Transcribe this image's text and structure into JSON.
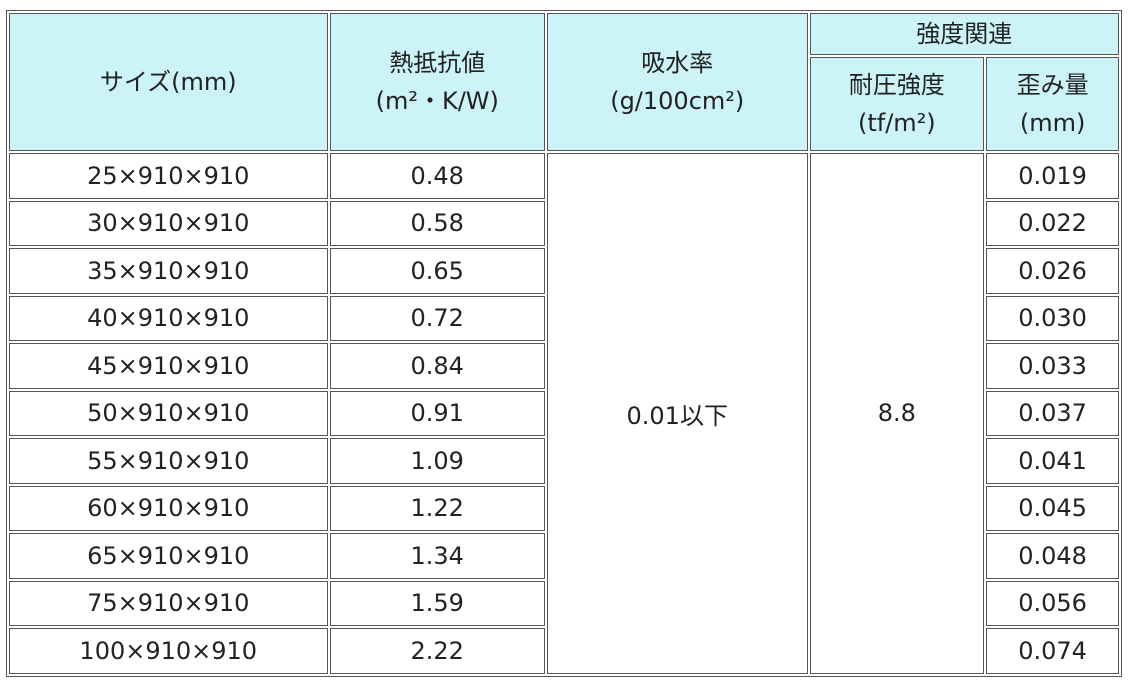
{
  "header": {
    "size": "サイズ(mm)",
    "thermal_resistance": [
      "熱抵抗値",
      "(m²・K/W)"
    ],
    "water_absorption": [
      "吸水率",
      "(g/100cm²)"
    ],
    "strength_group": "強度関連",
    "compressive_strength": [
      "耐圧強度",
      "(tf/m²)"
    ],
    "strain": [
      "歪み量",
      "(mm)"
    ]
  },
  "table": {
    "rows": [
      [
        "25×910×910",
        "0.48",
        "0.019"
      ],
      [
        "30×910×910",
        "0.58",
        "0.022"
      ],
      [
        "35×910×910",
        "0.65",
        "0.026"
      ],
      [
        "40×910×910",
        "0.72",
        "0.030"
      ],
      [
        "45×910×910",
        "0.84",
        "0.033"
      ],
      [
        "50×910×910",
        "0.91",
        "0.037"
      ],
      [
        "55×910×910",
        "1.09",
        "0.041"
      ],
      [
        "60×910×910",
        "1.22",
        "0.045"
      ],
      [
        "65×910×910",
        "1.34",
        "0.048"
      ],
      [
        "75×910×910",
        "1.59",
        "0.056"
      ],
      [
        "100×910×910",
        "2.22",
        "0.074"
      ]
    ],
    "water_absorption": "0.01以下",
    "compressive_strength": "8.8"
  }
}
